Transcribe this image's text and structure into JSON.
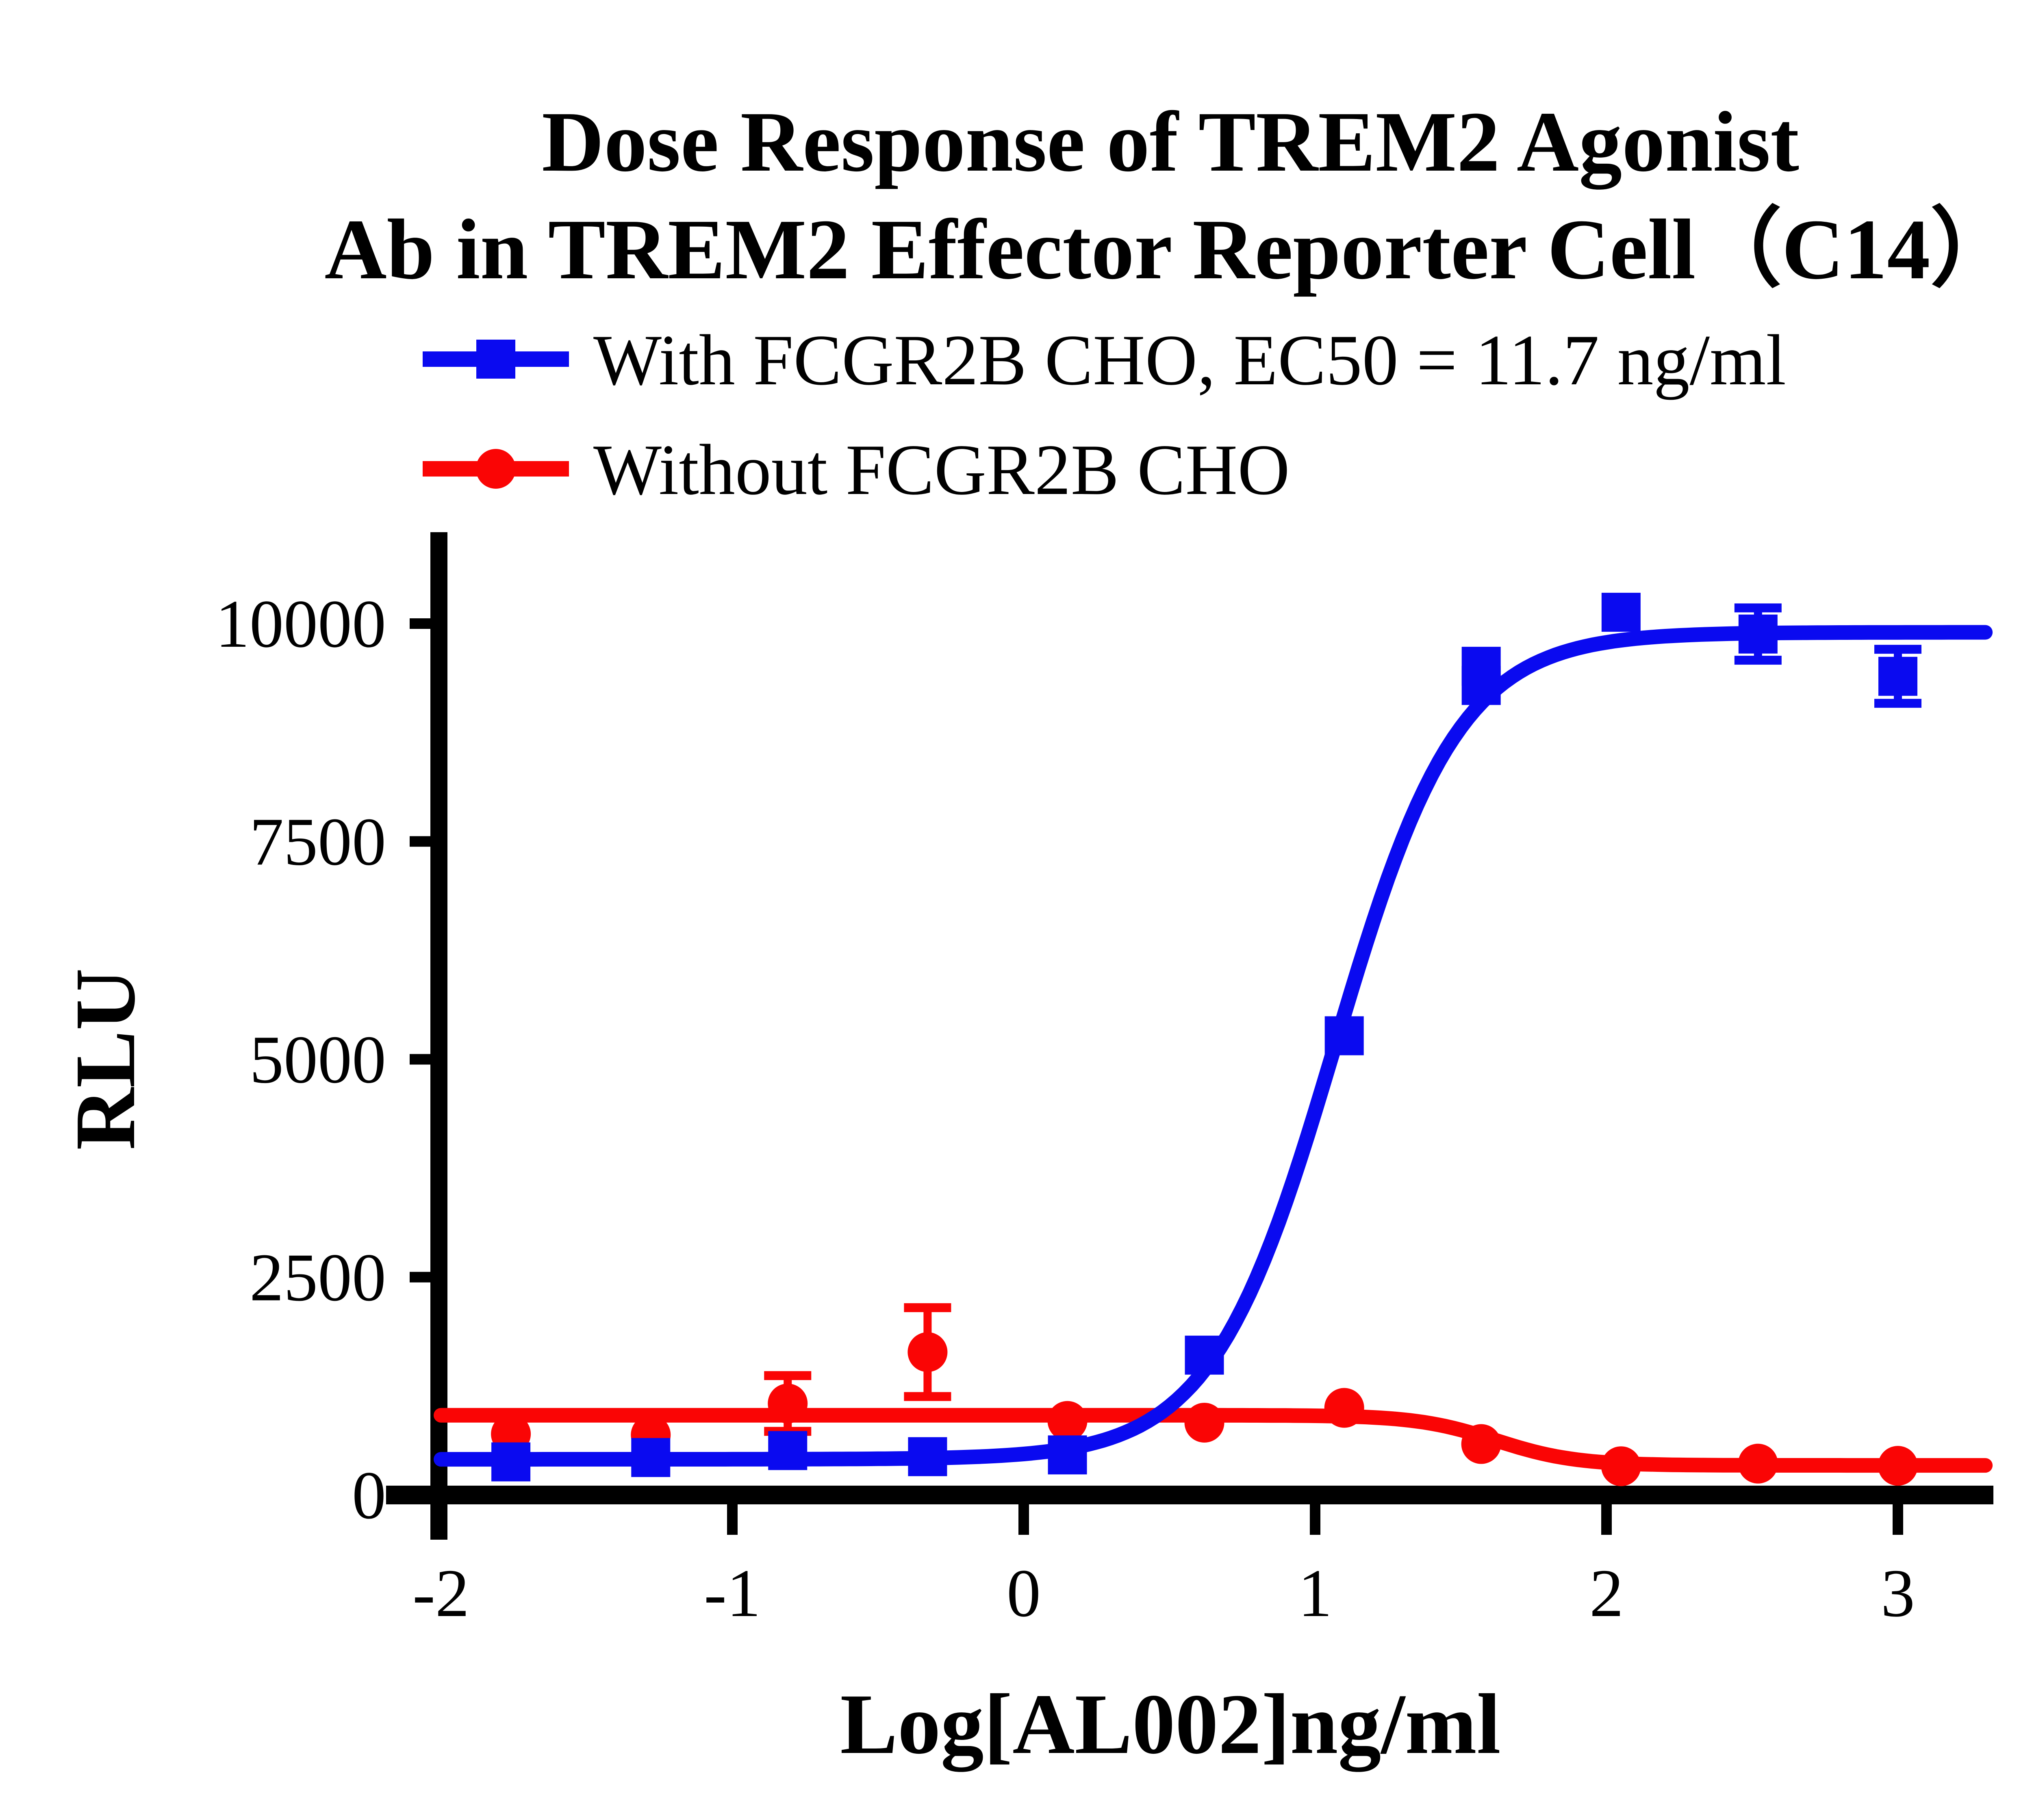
{
  "title": {
    "line1": "Dose Response of TREM2 Agonist",
    "line2": "Ab in TREM2 Effector Reporter Cell（C14）"
  },
  "legend": [
    {
      "label": "With FCGR2B CHO, EC50 = 11.7 ng/ml",
      "marker": "square",
      "color": "#0a0af0"
    },
    {
      "label": "Without FCGR2B CHO",
      "marker": "circle",
      "color": "#fa0505"
    }
  ],
  "axes": {
    "x": {
      "label": "Log[AL002]ng/ml",
      "ticks": [
        -2,
        -1,
        0,
        1,
        2,
        3
      ]
    },
    "y": {
      "label": "RLU",
      "ticks": [
        0,
        2500,
        5000,
        7500,
        10000
      ]
    }
  },
  "chart_data": {
    "type": "scatter",
    "subtype": "dose-response-curves",
    "xlabel": "Log[AL002]ng/ml",
    "ylabel": "RLU",
    "xlim": [
      -2,
      3.3
    ],
    "ylim": [
      0,
      11000
    ],
    "grid": false,
    "legend_position": "top-left",
    "ec50_ng_ml": 11.7,
    "series": [
      {
        "name": "Without FCGR2B CHO",
        "color": "#fa0505",
        "marker": "circle",
        "draw_order": 1,
        "points": [
          {
            "x": -1.76,
            "y": 700,
            "sd": 0
          },
          {
            "x": -1.28,
            "y": 690,
            "sd": 0
          },
          {
            "x": -0.81,
            "y": 1050,
            "sd": 320
          },
          {
            "x": -0.33,
            "y": 1640,
            "sd": 510
          },
          {
            "x": 0.15,
            "y": 850,
            "sd": 0
          },
          {
            "x": 0.62,
            "y": 830,
            "sd": 0
          },
          {
            "x": 1.1,
            "y": 1000,
            "sd": 0
          },
          {
            "x": 1.57,
            "y": 585,
            "sd": 0
          },
          {
            "x": 2.05,
            "y": 330,
            "sd": 0
          },
          {
            "x": 2.52,
            "y": 360,
            "sd": 0
          },
          {
            "x": 3.0,
            "y": 335,
            "sd": 0
          }
        ],
        "fit": {
          "bottom": 340,
          "top": 915,
          "logEC50": 1.62,
          "hill": -3.2
        }
      },
      {
        "name": "With FCGR2B CHO, EC50 = 11.7 ng/ml",
        "color": "#0a0af0",
        "marker": "square",
        "draw_order": 2,
        "points": [
          {
            "x": -1.76,
            "y": 380,
            "sd": 0
          },
          {
            "x": -1.28,
            "y": 430,
            "sd": 0
          },
          {
            "x": -0.81,
            "y": 510,
            "sd": 0
          },
          {
            "x": -0.33,
            "y": 440,
            "sd": 0
          },
          {
            "x": 0.15,
            "y": 460,
            "sd": 0
          },
          {
            "x": 0.62,
            "y": 1605,
            "sd": 0
          },
          {
            "x": 1.1,
            "y": 5270,
            "sd": 0
          },
          {
            "x": 1.57,
            "y": 9290,
            "sd": 0
          },
          {
            "x": 1.57,
            "y": 9510,
            "sd": 0
          },
          {
            "x": 2.05,
            "y": 10130,
            "sd": 0
          },
          {
            "x": 2.52,
            "y": 9880,
            "sd": 300
          },
          {
            "x": 3.0,
            "y": 9395,
            "sd": 310
          }
        ],
        "fit": {
          "bottom": 410,
          "top": 9900,
          "logEC50": 1.068,
          "hill": 2.05
        }
      }
    ]
  }
}
